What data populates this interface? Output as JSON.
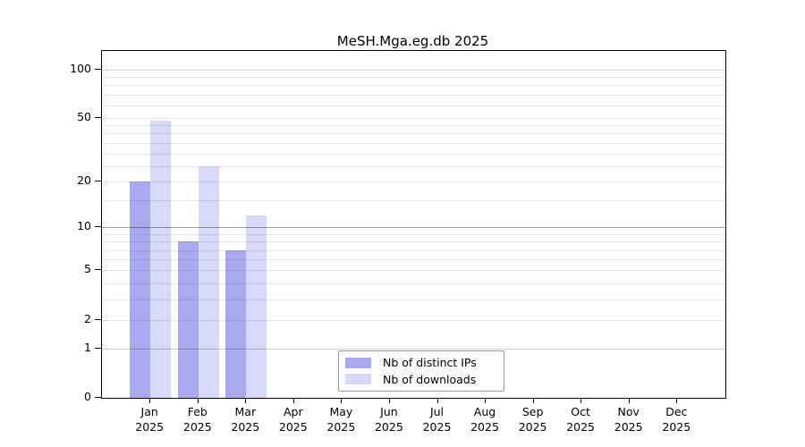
{
  "title": "MeSH.Mga.eg.db 2025",
  "legend": {
    "items": [
      {
        "label": "Nb of distinct IPs",
        "color": "#a9a9ef"
      },
      {
        "label": "Nb of downloads",
        "color": "#d8d8f7"
      }
    ]
  },
  "y_axis": {
    "tick_labels": [
      "0",
      "1",
      "2",
      "5",
      "10",
      "20",
      "50",
      "100"
    ]
  },
  "x_axis": {
    "months": [
      "Jan",
      "Feb",
      "Mar",
      "Apr",
      "May",
      "Jun",
      "Jul",
      "Aug",
      "Sep",
      "Oct",
      "Nov",
      "Dec"
    ],
    "year": "2025"
  },
  "chart_data": {
    "type": "bar",
    "title": "MeSH.Mga.eg.db 2025",
    "categories": [
      "Jan 2025",
      "Feb 2025",
      "Mar 2025",
      "Apr 2025",
      "May 2025",
      "Jun 2025",
      "Jul 2025",
      "Aug 2025",
      "Sep 2025",
      "Oct 2025",
      "Nov 2025",
      "Dec 2025"
    ],
    "series": [
      {
        "name": "Nb of distinct IPs",
        "color": "#a9a9ef",
        "values": [
          20,
          8,
          7,
          0,
          0,
          0,
          0,
          0,
          0,
          0,
          0,
          0
        ]
      },
      {
        "name": "Nb of downloads",
        "color": "#d8d8f7",
        "values": [
          48,
          25,
          12,
          0,
          0,
          0,
          0,
          0,
          0,
          0,
          0,
          0
        ]
      }
    ],
    "y_scale": "log1p",
    "ylim": [
      0,
      130
    ],
    "y_ticks": [
      0,
      1,
      2,
      5,
      10,
      20,
      50,
      100
    ],
    "y_minor_gridlines": [
      2,
      3,
      4,
      5,
      6,
      7,
      8,
      9,
      15,
      20,
      25,
      30,
      35,
      40,
      45,
      50,
      60,
      70,
      80,
      90
    ],
    "y_major_gridlines": [
      1,
      10,
      100
    ],
    "grid": "on",
    "legend_position": "lower center"
  }
}
